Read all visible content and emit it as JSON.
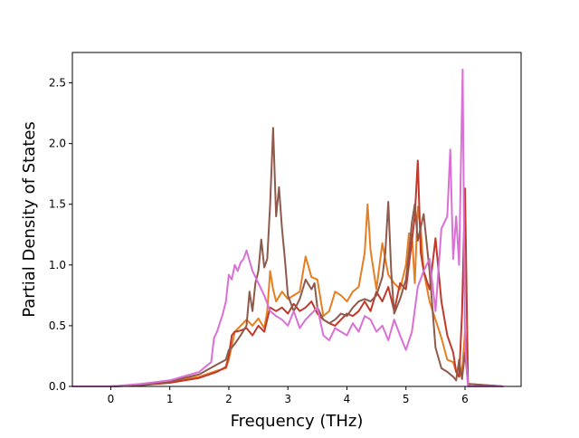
{
  "chart_data": {
    "type": "line",
    "title": "",
    "xlabel": "Frequency (THz)",
    "ylabel": "Partial Density of States",
    "xlim": [
      -0.65,
      6.95
    ],
    "ylim": [
      0,
      2.75
    ],
    "xticks": [
      0,
      1,
      2,
      3,
      4,
      5,
      6
    ],
    "yticks": [
      0.0,
      0.5,
      1.0,
      1.5,
      2.0,
      2.5
    ],
    "xtick_labels": [
      "0",
      "1",
      "2",
      "3",
      "4",
      "5",
      "6"
    ],
    "ytick_labels": [
      "0.0",
      "0.5",
      "1.0",
      "1.5",
      "2.0",
      "2.5"
    ],
    "grid": false,
    "legend": "none",
    "series": [
      {
        "color": "#e67e22",
        "x": [
          -0.65,
          0,
          0.5,
          1,
          1.5,
          1.8,
          1.95,
          2.0,
          2.05,
          2.1,
          2.2,
          2.3,
          2.4,
          2.5,
          2.6,
          2.65,
          2.7,
          2.75,
          2.8,
          2.9,
          3.0,
          3.1,
          3.2,
          3.3,
          3.4,
          3.5,
          3.6,
          3.7,
          3.8,
          3.9,
          4.0,
          4.1,
          4.2,
          4.3,
          4.35,
          4.4,
          4.5,
          4.6,
          4.7,
          4.8,
          4.9,
          5.0,
          5.05,
          5.1,
          5.15,
          5.2,
          5.25,
          5.3,
          5.4,
          5.5,
          5.6,
          5.7,
          5.8,
          5.85,
          5.9,
          5.95,
          6.0,
          6.05,
          6.1,
          6.65
        ],
        "y": [
          0,
          0,
          0.01,
          0.04,
          0.08,
          0.13,
          0.15,
          0.22,
          0.33,
          0.45,
          0.5,
          0.55,
          0.5,
          0.56,
          0.48,
          0.62,
          0.95,
          0.8,
          0.7,
          0.78,
          0.72,
          0.75,
          0.78,
          1.07,
          0.9,
          0.88,
          0.58,
          0.62,
          0.78,
          0.75,
          0.7,
          0.78,
          0.82,
          1.1,
          1.5,
          1.12,
          0.8,
          1.18,
          0.92,
          0.85,
          0.8,
          1.0,
          1.26,
          1.25,
          0.85,
          1.48,
          1.3,
          0.95,
          0.7,
          0.55,
          0.4,
          0.22,
          0.2,
          0.12,
          0.08,
          0.12,
          0.45,
          0.02,
          0,
          0
        ]
      },
      {
        "color": "#c0392b",
        "x": [
          -0.65,
          0,
          0.5,
          1,
          1.5,
          1.8,
          1.95,
          2.0,
          2.05,
          2.1,
          2.2,
          2.3,
          2.4,
          2.5,
          2.6,
          2.7,
          2.8,
          2.9,
          3.0,
          3.1,
          3.2,
          3.3,
          3.4,
          3.5,
          3.6,
          3.7,
          3.8,
          3.9,
          4.0,
          4.1,
          4.2,
          4.3,
          4.4,
          4.5,
          4.6,
          4.7,
          4.8,
          4.9,
          5.0,
          5.05,
          5.1,
          5.15,
          5.2,
          5.25,
          5.3,
          5.4,
          5.5,
          5.6,
          5.7,
          5.8,
          5.85,
          5.9,
          5.95,
          6.0,
          6.05,
          6.65
        ],
        "y": [
          0,
          0,
          0.01,
          0.03,
          0.07,
          0.12,
          0.16,
          0.25,
          0.42,
          0.45,
          0.46,
          0.48,
          0.42,
          0.5,
          0.45,
          0.65,
          0.62,
          0.65,
          0.6,
          0.68,
          0.62,
          0.65,
          0.7,
          0.6,
          0.55,
          0.52,
          0.5,
          0.55,
          0.6,
          0.58,
          0.62,
          0.7,
          0.62,
          0.78,
          0.7,
          0.82,
          0.62,
          0.85,
          0.8,
          1.0,
          1.2,
          1.4,
          1.86,
          1.1,
          0.95,
          0.8,
          1.22,
          0.7,
          0.42,
          0.28,
          0.12,
          0.08,
          0.6,
          1.63,
          0.02,
          0
        ]
      },
      {
        "color": "#8e5a4b",
        "x": [
          -0.65,
          0,
          0.5,
          1,
          1.5,
          1.8,
          1.95,
          2.0,
          2.05,
          2.1,
          2.2,
          2.3,
          2.35,
          2.4,
          2.45,
          2.5,
          2.55,
          2.6,
          2.65,
          2.7,
          2.75,
          2.8,
          2.85,
          2.9,
          2.95,
          3.0,
          3.1,
          3.2,
          3.3,
          3.4,
          3.45,
          3.5,
          3.6,
          3.7,
          3.8,
          3.9,
          4.0,
          4.1,
          4.2,
          4.3,
          4.4,
          4.5,
          4.6,
          4.65,
          4.7,
          4.75,
          4.8,
          4.9,
          5.0,
          5.05,
          5.1,
          5.15,
          5.2,
          5.3,
          5.4,
          5.5,
          5.6,
          5.7,
          5.8,
          5.85,
          5.9,
          5.95,
          6.0,
          6.05,
          6.65
        ],
        "y": [
          0,
          0,
          0.01,
          0.04,
          0.1,
          0.18,
          0.22,
          0.3,
          0.32,
          0.35,
          0.42,
          0.5,
          0.78,
          0.62,
          0.85,
          0.95,
          1.21,
          0.98,
          1.05,
          1.5,
          2.13,
          1.4,
          1.64,
          1.3,
          1.05,
          0.75,
          0.62,
          0.72,
          0.88,
          0.8,
          0.85,
          0.65,
          0.55,
          0.52,
          0.55,
          0.6,
          0.58,
          0.65,
          0.7,
          0.72,
          0.7,
          0.75,
          0.9,
          1.1,
          1.52,
          0.95,
          0.6,
          0.72,
          0.88,
          1.1,
          1.35,
          1.5,
          1.2,
          1.42,
          0.95,
          0.32,
          0.15,
          0.12,
          0.08,
          0.05,
          0.22,
          0.06,
          0.28,
          0.02,
          0
        ]
      },
      {
        "color": "#da70d6",
        "x": [
          -0.65,
          0,
          0.5,
          1,
          1.5,
          1.7,
          1.75,
          1.8,
          1.9,
          1.95,
          2.0,
          2.05,
          2.1,
          2.15,
          2.2,
          2.25,
          2.3,
          2.4,
          2.5,
          2.6,
          2.7,
          2.8,
          2.9,
          3.0,
          3.1,
          3.2,
          3.3,
          3.4,
          3.5,
          3.6,
          3.7,
          3.8,
          3.9,
          4.0,
          4.1,
          4.2,
          4.3,
          4.4,
          4.5,
          4.6,
          4.7,
          4.8,
          4.9,
          5.0,
          5.1,
          5.2,
          5.3,
          5.4,
          5.5,
          5.6,
          5.7,
          5.75,
          5.8,
          5.85,
          5.9,
          5.93,
          5.96,
          6.0,
          6.05,
          6.65
        ],
        "y": [
          0,
          0,
          0.02,
          0.05,
          0.12,
          0.2,
          0.4,
          0.45,
          0.6,
          0.7,
          0.92,
          0.88,
          1.0,
          0.95,
          1.02,
          1.05,
          1.12,
          0.95,
          0.85,
          0.75,
          0.62,
          0.58,
          0.55,
          0.5,
          0.62,
          0.48,
          0.55,
          0.6,
          0.65,
          0.42,
          0.38,
          0.48,
          0.45,
          0.42,
          0.52,
          0.45,
          0.58,
          0.55,
          0.45,
          0.5,
          0.38,
          0.55,
          0.42,
          0.3,
          0.45,
          0.82,
          0.95,
          1.05,
          0.62,
          1.3,
          1.4,
          1.95,
          1.05,
          1.4,
          1.0,
          1.8,
          2.61,
          0.35,
          0,
          0
        ]
      }
    ]
  }
}
